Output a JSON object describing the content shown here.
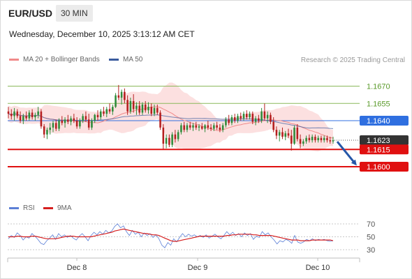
{
  "header": {
    "pair": "EUR/USD",
    "timeframe": "30 MIN",
    "datetime": "Wednesday, December 10, 2025 3:13:12 AM CET",
    "credit": "Research © 2025 Trading Central"
  },
  "legend_price": [
    {
      "label": "MA 20 + Bollinger Bands",
      "color": "#f08a8a"
    },
    {
      "label": "MA 50",
      "color": "#3a5b9e"
    }
  ],
  "legend_rsi": [
    {
      "label": "RSI",
      "color": "#5b7fd6"
    },
    {
      "label": "9MA",
      "color": "#d61f1f"
    }
  ],
  "chart_data": [
    {
      "type": "candlestick",
      "x_labels": [
        "Dec 8",
        "Dec 9",
        "Dec 10"
      ],
      "ylim": [
        1.158,
        1.168
      ],
      "levels": [
        {
          "label": "1.1670",
          "value": 1.167,
          "kind": "resistance",
          "color": "#8ab95a"
        },
        {
          "label": "1.1655",
          "value": 1.1655,
          "kind": "resistance",
          "color": "#8ab95a"
        },
        {
          "label": "1.1640",
          "value": 1.164,
          "kind": "pivot",
          "color": "#2f6fe0"
        },
        {
          "label": "1.1623",
          "value": 1.1623,
          "kind": "last price",
          "color": "#333333"
        },
        {
          "label": "1.1615",
          "value": 1.1615,
          "kind": "support",
          "color": "#e01010"
        },
        {
          "label": "1.1600",
          "value": 1.16,
          "kind": "target",
          "color": "#e01010"
        }
      ],
      "forecast": {
        "from": 1.1623,
        "to": 1.16,
        "direction": "down"
      },
      "candles": [
        [
          1.1648,
          1.1652,
          1.1642,
          1.1646
        ],
        [
          1.1646,
          1.165,
          1.1641,
          1.1644
        ],
        [
          1.1644,
          1.1651,
          1.164,
          1.1648
        ],
        [
          1.1648,
          1.165,
          1.1642,
          1.1644
        ],
        [
          1.1644,
          1.1648,
          1.1638,
          1.164
        ],
        [
          1.164,
          1.1646,
          1.1637,
          1.1644
        ],
        [
          1.1644,
          1.1648,
          1.164,
          1.1642
        ],
        [
          1.1642,
          1.1649,
          1.164,
          1.1647
        ],
        [
          1.1647,
          1.165,
          1.1641,
          1.1643
        ],
        [
          1.1643,
          1.1647,
          1.164,
          1.1645
        ],
        [
          1.1645,
          1.1652,
          1.1642,
          1.1648
        ],
        [
          1.1648,
          1.165,
          1.1633,
          1.1635
        ],
        [
          1.1635,
          1.1637,
          1.1625,
          1.1628
        ],
        [
          1.1628,
          1.1634,
          1.1624,
          1.1632
        ],
        [
          1.1632,
          1.1638,
          1.1628,
          1.1634
        ],
        [
          1.1634,
          1.164,
          1.163,
          1.1638
        ],
        [
          1.1638,
          1.1641,
          1.1631,
          1.1633
        ],
        [
          1.1633,
          1.1642,
          1.1631,
          1.164
        ],
        [
          1.164,
          1.1644,
          1.1636,
          1.1638
        ],
        [
          1.1638,
          1.1643,
          1.1634,
          1.1641
        ],
        [
          1.1641,
          1.1645,
          1.1637,
          1.1639
        ],
        [
          1.1639,
          1.1644,
          1.1636,
          1.1642
        ],
        [
          1.1642,
          1.1646,
          1.1638,
          1.164
        ],
        [
          1.164,
          1.1643,
          1.1633,
          1.1635
        ],
        [
          1.1635,
          1.1642,
          1.1633,
          1.164
        ],
        [
          1.164,
          1.1646,
          1.1638,
          1.1644
        ],
        [
          1.1644,
          1.1648,
          1.1639,
          1.1641
        ],
        [
          1.1641,
          1.1646,
          1.1632,
          1.1634
        ],
        [
          1.1634,
          1.1642,
          1.1632,
          1.164
        ],
        [
          1.164,
          1.1646,
          1.1638,
          1.1645
        ],
        [
          1.1645,
          1.1649,
          1.164,
          1.1643
        ],
        [
          1.1643,
          1.165,
          1.1641,
          1.1648
        ],
        [
          1.1648,
          1.1652,
          1.1644,
          1.1646
        ],
        [
          1.1646,
          1.1652,
          1.1643,
          1.165
        ],
        [
          1.165,
          1.1655,
          1.1646,
          1.1648
        ],
        [
          1.1648,
          1.1654,
          1.1645,
          1.1652
        ],
        [
          1.1652,
          1.1664,
          1.1651,
          1.1662
        ],
        [
          1.1662,
          1.1671,
          1.1658,
          1.166
        ],
        [
          1.166,
          1.1667,
          1.1654,
          1.1665
        ],
        [
          1.1665,
          1.1668,
          1.1655,
          1.1658
        ],
        [
          1.1658,
          1.1662,
          1.1645,
          1.1648
        ],
        [
          1.1648,
          1.166,
          1.1646,
          1.1657
        ],
        [
          1.1657,
          1.1663,
          1.1647,
          1.165
        ],
        [
          1.165,
          1.1656,
          1.1645,
          1.1653
        ],
        [
          1.1653,
          1.1657,
          1.1645,
          1.1647
        ],
        [
          1.1647,
          1.1656,
          1.1645,
          1.1654
        ],
        [
          1.1654,
          1.1657,
          1.1647,
          1.1649
        ],
        [
          1.1649,
          1.1656,
          1.1646,
          1.1652
        ],
        [
          1.1652,
          1.1655,
          1.1644,
          1.1646
        ],
        [
          1.1646,
          1.1654,
          1.1644,
          1.1651
        ],
        [
          1.1651,
          1.1654,
          1.1645,
          1.1647
        ],
        [
          1.1647,
          1.1649,
          1.1632,
          1.1634
        ],
        [
          1.1634,
          1.1637,
          1.1615,
          1.162
        ],
        [
          1.162,
          1.1628,
          1.1616,
          1.1625
        ],
        [
          1.1625,
          1.1628,
          1.1617,
          1.1619
        ],
        [
          1.1619,
          1.163,
          1.1617,
          1.1628
        ],
        [
          1.1628,
          1.1632,
          1.1621,
          1.1624
        ],
        [
          1.1624,
          1.1632,
          1.1622,
          1.163
        ],
        [
          1.163,
          1.1638,
          1.1628,
          1.1636
        ],
        [
          1.1636,
          1.1639,
          1.163,
          1.1632
        ],
        [
          1.1632,
          1.1638,
          1.163,
          1.1636
        ],
        [
          1.1636,
          1.1639,
          1.1632,
          1.1634
        ],
        [
          1.1634,
          1.1638,
          1.1631,
          1.1636
        ],
        [
          1.1636,
          1.1639,
          1.1632,
          1.1634
        ],
        [
          1.1634,
          1.1637,
          1.1631,
          1.1635
        ],
        [
          1.1635,
          1.1638,
          1.1632,
          1.1633
        ],
        [
          1.1633,
          1.1637,
          1.163,
          1.1636
        ],
        [
          1.1636,
          1.164,
          1.1632,
          1.1634
        ],
        [
          1.1634,
          1.1637,
          1.1631,
          1.1633
        ],
        [
          1.1633,
          1.1638,
          1.1631,
          1.1636
        ],
        [
          1.1636,
          1.1639,
          1.1632,
          1.1634
        ],
        [
          1.1634,
          1.1637,
          1.163,
          1.1632
        ],
        [
          1.1632,
          1.1638,
          1.163,
          1.1636
        ],
        [
          1.1636,
          1.1643,
          1.1634,
          1.1641
        ],
        [
          1.1641,
          1.1645,
          1.1636,
          1.1638
        ],
        [
          1.1638,
          1.1645,
          1.1636,
          1.1643
        ],
        [
          1.1643,
          1.1646,
          1.1638,
          1.164
        ],
        [
          1.164,
          1.1646,
          1.1638,
          1.1644
        ],
        [
          1.1644,
          1.1647,
          1.164,
          1.1642
        ],
        [
          1.1642,
          1.1648,
          1.164,
          1.1646
        ],
        [
          1.1646,
          1.1649,
          1.1641,
          1.1643
        ],
        [
          1.1643,
          1.1648,
          1.1641,
          1.1646
        ],
        [
          1.1646,
          1.1648,
          1.1637,
          1.1639
        ],
        [
          1.1639,
          1.1644,
          1.1636,
          1.1642
        ],
        [
          1.1642,
          1.1645,
          1.1638,
          1.164
        ],
        [
          1.164,
          1.1651,
          1.1638,
          1.1648
        ],
        [
          1.1648,
          1.1655,
          1.164,
          1.1642
        ],
        [
          1.1642,
          1.1648,
          1.1638,
          1.1645
        ],
        [
          1.1645,
          1.1647,
          1.1637,
          1.1639
        ],
        [
          1.1639,
          1.1643,
          1.163,
          1.1632
        ],
        [
          1.1632,
          1.1635,
          1.1624,
          1.1627
        ],
        [
          1.1627,
          1.1632,
          1.1622,
          1.163
        ],
        [
          1.163,
          1.1634,
          1.1624,
          1.1626
        ],
        [
          1.1626,
          1.1631,
          1.1623,
          1.1629
        ],
        [
          1.1629,
          1.1633,
          1.1625,
          1.1627
        ],
        [
          1.1627,
          1.1632,
          1.1614,
          1.162
        ],
        [
          1.162,
          1.1636,
          1.1619,
          1.1634
        ],
        [
          1.1634,
          1.1637,
          1.1622,
          1.1624
        ],
        [
          1.1624,
          1.1628,
          1.1616,
          1.162
        ],
        [
          1.162,
          1.1624,
          1.1618,
          1.1622
        ],
        [
          1.1622,
          1.1627,
          1.162,
          1.1625
        ],
        [
          1.1625,
          1.1628,
          1.1621,
          1.1623
        ],
        [
          1.1623,
          1.1628,
          1.1621,
          1.1626
        ],
        [
          1.1626,
          1.1628,
          1.1621,
          1.1623
        ],
        [
          1.1623,
          1.1627,
          1.1621,
          1.1625
        ],
        [
          1.1625,
          1.1627,
          1.1621,
          1.1623
        ],
        [
          1.1623,
          1.1627,
          1.1621,
          1.1625
        ],
        [
          1.1625,
          1.1627,
          1.1621,
          1.1623
        ],
        [
          1.1623,
          1.1626,
          1.162,
          1.1622
        ],
        [
          1.1622,
          1.1626,
          1.162,
          1.1623
        ]
      ]
    },
    {
      "type": "line",
      "ylim": [
        25,
        78
      ],
      "y_ticks": [
        "70",
        "50",
        "30"
      ],
      "series": [
        {
          "name": "RSI",
          "values": [
            47,
            52,
            49,
            56,
            52,
            45,
            50,
            48,
            55,
            51,
            46,
            40,
            38,
            44,
            48,
            53,
            46,
            55,
            50,
            53,
            49,
            52,
            48,
            45,
            51,
            55,
            50,
            44,
            52,
            57,
            53,
            58,
            54,
            60,
            56,
            59,
            66,
            70,
            64,
            67,
            58,
            52,
            60,
            54,
            57,
            50,
            56,
            52,
            55,
            49,
            53,
            47,
            37,
            33,
            41,
            37,
            47,
            42,
            49,
            55,
            50,
            54,
            51,
            53,
            50,
            52,
            49,
            53,
            48,
            51,
            54,
            50,
            47,
            52,
            58,
            53,
            57,
            52,
            55,
            50,
            56,
            52,
            55,
            46,
            51,
            49,
            58,
            53,
            56,
            50,
            45,
            39,
            44,
            42,
            46,
            44,
            40,
            52,
            42,
            40,
            42,
            46,
            44,
            47,
            44,
            46,
            45,
            46,
            44,
            43,
            44
          ]
        },
        {
          "name": "9MA",
          "values": [
            50,
            50,
            50,
            51,
            51,
            50,
            50,
            50,
            51,
            51,
            50,
            49,
            48,
            47,
            47,
            47,
            47,
            48,
            49,
            50,
            51,
            51,
            51,
            50,
            50,
            50,
            50,
            50,
            50,
            51,
            52,
            53,
            54,
            55,
            56,
            57,
            59,
            60,
            61,
            62,
            61,
            60,
            59,
            58,
            57,
            56,
            55,
            55,
            54,
            53,
            53,
            52,
            50,
            48,
            46,
            44,
            43,
            43,
            44,
            45,
            46,
            47,
            48,
            49,
            50,
            51,
            51,
            51,
            51,
            51,
            51,
            51,
            51,
            51,
            52,
            52,
            53,
            53,
            54,
            54,
            54,
            54,
            54,
            53,
            53,
            52,
            52,
            52,
            52,
            52,
            51,
            50,
            49,
            48,
            47,
            46,
            45,
            45,
            45,
            44,
            44,
            44,
            44,
            45,
            45,
            45,
            45,
            45,
            45,
            45,
            44
          ]
        }
      ]
    }
  ]
}
